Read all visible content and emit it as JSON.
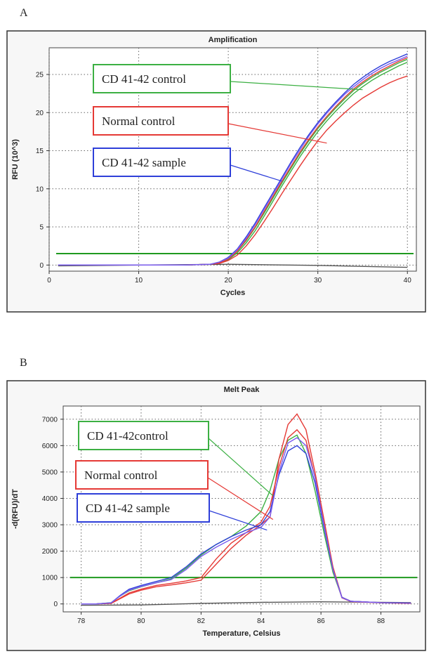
{
  "panels": {
    "a": {
      "letter": "A"
    },
    "b": {
      "letter": "B"
    }
  },
  "chart_data": [
    {
      "type": "line",
      "title": "Amplification",
      "xlabel": "Cycles",
      "ylabel": "RFU (10^3)",
      "xlim": [
        0,
        41
      ],
      "ylim": [
        -0.8,
        28.5
      ],
      "xticks": [
        0,
        10,
        20,
        30,
        40
      ],
      "yticks": [
        0,
        5,
        10,
        15,
        20,
        25
      ],
      "grid": true,
      "threshold": {
        "value": 1.5,
        "color": "#1f9a1f"
      },
      "baseline_curve": {
        "color": "#555555",
        "x": [
          1,
          20,
          30,
          40
        ],
        "y": [
          -0.1,
          0.1,
          -0.05,
          -0.3
        ]
      },
      "series": [
        {
          "name": "CD 41-42 control",
          "color": "#3cb043",
          "x": [
            1,
            15,
            18,
            19,
            20,
            21,
            22,
            23,
            24,
            25,
            26,
            27,
            28,
            29,
            30,
            31,
            32,
            33,
            34,
            35,
            36,
            37,
            38,
            39,
            40
          ],
          "y": [
            0,
            0,
            0.1,
            0.3,
            0.8,
            1.8,
            3.2,
            4.9,
            6.8,
            8.8,
            10.8,
            12.7,
            14.6,
            16.3,
            17.9,
            19.3,
            20.6,
            21.8,
            22.9,
            23.8,
            24.6,
            25.3,
            25.9,
            26.5,
            27.0
          ]
        },
        {
          "name": "CD 41-42 control",
          "color": "#3cb043",
          "x": [
            1,
            15,
            18,
            19,
            20,
            21,
            22,
            23,
            24,
            25,
            26,
            27,
            28,
            29,
            30,
            31,
            32,
            33,
            34,
            35,
            36,
            37,
            38,
            39,
            40
          ],
          "y": [
            0,
            0,
            0.1,
            0.3,
            0.7,
            1.6,
            2.9,
            4.5,
            6.4,
            8.4,
            10.4,
            12.3,
            14.2,
            15.9,
            17.5,
            18.9,
            20.2,
            21.4,
            22.5,
            23.4,
            24.2,
            24.9,
            25.5,
            26.1,
            26.6
          ]
        },
        {
          "name": "Normal control",
          "color": "#e53935",
          "x": [
            1,
            15,
            18,
            19,
            20,
            21,
            22,
            23,
            24,
            25,
            26,
            27,
            28,
            29,
            30,
            31,
            32,
            33,
            34,
            35,
            36,
            37,
            38,
            39,
            40
          ],
          "y": [
            0,
            0,
            0.1,
            0.2,
            0.6,
            1.3,
            2.5,
            4.0,
            5.7,
            7.5,
            9.4,
            11.2,
            13.0,
            14.7,
            16.3,
            17.7,
            18.9,
            20.0,
            21.0,
            21.9,
            22.6,
            23.3,
            23.9,
            24.4,
            24.8
          ]
        },
        {
          "name": "Normal control",
          "color": "#e53935",
          "x": [
            1,
            15,
            18,
            19,
            20,
            21,
            22,
            23,
            24,
            25,
            26,
            27,
            28,
            29,
            30,
            31,
            32,
            33,
            34,
            35,
            36,
            37,
            38,
            39,
            40
          ],
          "y": [
            0,
            0,
            0.1,
            0.3,
            0.8,
            1.8,
            3.3,
            5.0,
            7.0,
            9.0,
            11.0,
            12.9,
            14.8,
            16.5,
            18.1,
            19.5,
            20.8,
            22.0,
            23.1,
            24.0,
            24.8,
            25.5,
            26.1,
            26.7,
            27.2
          ]
        },
        {
          "name": "CD 41-42 sample",
          "color": "#2e3fd9",
          "x": [
            1,
            15,
            18,
            19,
            20,
            21,
            22,
            23,
            24,
            25,
            26,
            27,
            28,
            29,
            30,
            31,
            32,
            33,
            34,
            35,
            36,
            37,
            38,
            39,
            40
          ],
          "y": [
            0,
            0,
            0.1,
            0.4,
            1.0,
            2.1,
            3.7,
            5.5,
            7.5,
            9.5,
            11.5,
            13.5,
            15.4,
            17.1,
            18.7,
            20.1,
            21.4,
            22.6,
            23.7,
            24.6,
            25.4,
            26.1,
            26.7,
            27.2,
            27.7
          ]
        },
        {
          "name": "CD 41-42 sample",
          "color": "#7b5cf0",
          "x": [
            1,
            15,
            18,
            19,
            20,
            21,
            22,
            23,
            24,
            25,
            26,
            27,
            28,
            29,
            30,
            31,
            32,
            33,
            34,
            35,
            36,
            37,
            38,
            39,
            40
          ],
          "y": [
            0,
            0,
            0.1,
            0.4,
            0.9,
            2.0,
            3.5,
            5.3,
            7.3,
            9.3,
            11.3,
            13.3,
            15.1,
            16.9,
            18.5,
            19.9,
            21.2,
            22.4,
            23.4,
            24.3,
            25.1,
            25.8,
            26.4,
            26.9,
            27.4
          ]
        }
      ],
      "legend": {
        "placement": "left",
        "entries": [
          {
            "label": "CD 41-42 control",
            "color": "#3cb043",
            "target": [
              35,
              23.0
            ]
          },
          {
            "label": "Normal control",
            "color": "#e53935",
            "target": [
              31,
              16.0
            ]
          },
          {
            "label": "CD 41-42 sample",
            "color": "#2e3fd9",
            "target": [
              26,
              11.0
            ]
          }
        ]
      }
    },
    {
      "type": "line",
      "title": "Melt Peak",
      "xlabel": "Temperature, Celsius",
      "ylabel": "-d(RFU)/dT",
      "xlim": [
        77.4,
        89.3
      ],
      "ylim": [
        -300,
        7500
      ],
      "xticks": [
        78,
        80,
        82,
        84,
        86,
        88
      ],
      "yticks": [
        0,
        1000,
        2000,
        3000,
        4000,
        5000,
        6000,
        7000
      ],
      "grid": true,
      "threshold": {
        "value": 1000,
        "color": "#1f9a1f"
      },
      "baseline_curve": {
        "color": "#555555",
        "x": [
          78,
          80,
          82,
          84,
          86,
          88,
          89
        ],
        "y": [
          -50,
          -40,
          20,
          60,
          80,
          60,
          50
        ]
      },
      "series": [
        {
          "name": "CD 41-42control",
          "color": "#3cb043",
          "x": [
            78,
            78.5,
            79,
            79.3,
            79.6,
            80,
            80.5,
            81,
            81.5,
            82,
            82.5,
            83,
            83.5,
            84,
            84.3,
            84.6,
            84.9,
            85.2,
            85.5,
            85.8,
            86.1,
            86.4,
            86.7,
            87,
            88,
            89
          ],
          "y": [
            0,
            0,
            50,
            300,
            500,
            650,
            800,
            950,
            1350,
            1850,
            2250,
            2550,
            2950,
            3500,
            4300,
            5500,
            6200,
            6400,
            5700,
            4300,
            2700,
            1200,
            250,
            100,
            50,
            30
          ]
        },
        {
          "name": "Normal control",
          "color": "#e53935",
          "x": [
            78,
            78.5,
            79,
            79.3,
            79.6,
            80,
            80.5,
            81,
            81.5,
            82,
            82.5,
            83,
            83.5,
            84,
            84.3,
            84.6,
            84.9,
            85.2,
            85.5,
            85.8,
            86.1,
            86.4,
            86.7,
            87,
            88,
            89
          ],
          "y": [
            0,
            0,
            20,
            200,
            380,
            520,
            650,
            720,
            800,
            900,
            1500,
            2100,
            2600,
            3000,
            3300,
            5500,
            6800,
            7200,
            6600,
            5000,
            3200,
            1400,
            250,
            100,
            50,
            30
          ]
        },
        {
          "name": "Normal control",
          "color": "#e53935",
          "x": [
            78,
            78.5,
            79,
            79.3,
            79.6,
            80,
            80.5,
            81,
            81.5,
            82,
            82.5,
            83,
            83.5,
            84,
            84.3,
            84.6,
            84.9,
            85.2,
            85.5,
            85.8,
            86.1,
            86.4,
            86.7,
            87,
            88,
            89
          ],
          "y": [
            0,
            0,
            30,
            220,
            420,
            560,
            700,
            780,
            870,
            1000,
            1700,
            2300,
            2700,
            3100,
            3700,
            5200,
            6300,
            6600,
            6200,
            4800,
            3000,
            1300,
            230,
            90,
            40,
            20
          ]
        },
        {
          "name": "CD 41-42 sample",
          "color": "#2e3fd9",
          "x": [
            78,
            78.5,
            79,
            79.3,
            79.6,
            80,
            80.5,
            81,
            81.5,
            82,
            82.5,
            83,
            83.5,
            84,
            84.3,
            84.6,
            84.9,
            85.2,
            85.5,
            85.8,
            86.1,
            86.4,
            86.7,
            87,
            88,
            89
          ],
          "y": [
            0,
            0,
            40,
            320,
            560,
            700,
            850,
            1000,
            1400,
            1900,
            2250,
            2550,
            2800,
            3000,
            3500,
            4900,
            5800,
            6000,
            5700,
            4600,
            2900,
            1300,
            250,
            100,
            50,
            30
          ]
        },
        {
          "name": "CD 41-42 sample",
          "color": "#7b5cf0",
          "x": [
            78,
            78.5,
            79,
            79.3,
            79.6,
            80,
            80.5,
            81,
            81.5,
            82,
            82.5,
            83,
            83.5,
            84,
            84.3,
            84.6,
            84.9,
            85.2,
            85.5,
            85.8,
            86.1,
            86.4,
            86.7,
            87,
            88,
            89
          ],
          "y": [
            0,
            0,
            40,
            300,
            520,
            660,
            800,
            920,
            1300,
            1800,
            2150,
            2450,
            2700,
            2900,
            3300,
            5000,
            6100,
            6300,
            6000,
            4800,
            3000,
            1300,
            240,
            100,
            50,
            30
          ]
        }
      ],
      "legend": {
        "placement": "left",
        "entries": [
          {
            "label": "CD 41-42control",
            "color": "#3cb043",
            "target": [
              84.4,
              4100
            ]
          },
          {
            "label": "Normal control",
            "color": "#e53935",
            "target": [
              84.4,
              3200
            ]
          },
          {
            "label": "CD 41-42 sample",
            "color": "#2e3fd9",
            "target": [
              84.2,
              2800
            ]
          }
        ]
      }
    }
  ]
}
